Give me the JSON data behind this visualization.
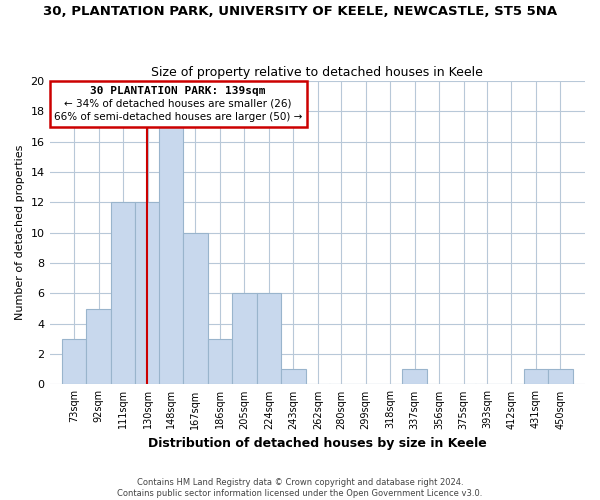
{
  "title": "30, PLANTATION PARK, UNIVERSITY OF KEELE, NEWCASTLE, ST5 5NA",
  "subtitle": "Size of property relative to detached houses in Keele",
  "xlabel": "Distribution of detached houses by size in Keele",
  "ylabel": "Number of detached properties",
  "bar_color": "#c8d8ed",
  "bar_edge_color": "#99b4cc",
  "grid_color": "#b8c8d8",
  "background_color": "#ffffff",
  "bin_labels": [
    "73sqm",
    "92sqm",
    "111sqm",
    "130sqm",
    "148sqm",
    "167sqm",
    "186sqm",
    "205sqm",
    "224sqm",
    "243sqm",
    "262sqm",
    "280sqm",
    "299sqm",
    "318sqm",
    "337sqm",
    "356sqm",
    "375sqm",
    "393sqm",
    "412sqm",
    "431sqm",
    "450sqm"
  ],
  "bar_heights": [
    3,
    5,
    12,
    12,
    17,
    10,
    3,
    6,
    6,
    1,
    0,
    0,
    0,
    0,
    1,
    0,
    0,
    0,
    0,
    1,
    1
  ],
  "ylim": [
    0,
    20
  ],
  "yticks": [
    0,
    2,
    4,
    6,
    8,
    10,
    12,
    14,
    16,
    18,
    20
  ],
  "marker_line_color": "#cc0000",
  "annotation_line1": "30 PLANTATION PARK: 139sqm",
  "annotation_line2": "← 34% of detached houses are smaller (26)",
  "annotation_line3": "66% of semi-detached houses are larger (50) →",
  "annotation_box_edge": "#cc0000",
  "footer_line1": "Contains HM Land Registry data © Crown copyright and database right 2024.",
  "footer_line2": "Contains public sector information licensed under the Open Government Licence v3.0.",
  "bin_edges": [
    73,
    92,
    111,
    130,
    148,
    167,
    186,
    205,
    224,
    243,
    262,
    280,
    299,
    318,
    337,
    356,
    375,
    393,
    412,
    431,
    450
  ],
  "bin_width": 19
}
